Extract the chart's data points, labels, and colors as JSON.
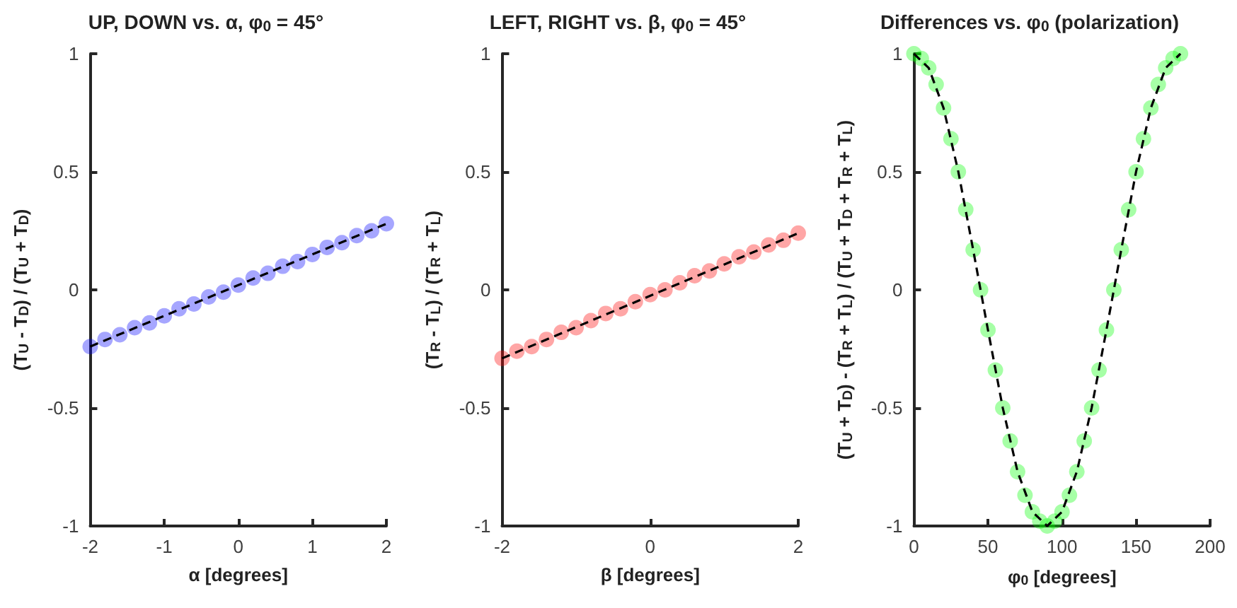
{
  "chart_data": [
    {
      "type": "scatter",
      "title": "UP, DOWN vs. α, φ$_{0}$ = 45°",
      "xlabel": "α [degrees]",
      "ylabel": "(T$_{U}$ - T$_{D}$) / (T$_{U}$ + T$_{D}$)",
      "xlim": [
        -2,
        2
      ],
      "xticks": [
        -2,
        -1,
        0,
        1,
        2
      ],
      "ylim": [
        -1,
        1
      ],
      "yticks": [
        -1,
        -0.5,
        0,
        0.5,
        1
      ],
      "grid": false,
      "series": [
        {
          "color": "#0000ff",
          "marker": "circle",
          "x": [
            -2,
            -1.8,
            -1.6,
            -1.4,
            -1.2,
            -1,
            -0.8,
            -0.6,
            -0.4,
            -0.2,
            0,
            0.2,
            0.4,
            0.6,
            0.8,
            1,
            1.2,
            1.4,
            1.6,
            1.8,
            2
          ],
          "values": [
            -0.24,
            -0.21,
            -0.19,
            -0.16,
            -0.14,
            -0.11,
            -0.08,
            -0.06,
            -0.03,
            -0.01,
            0.02,
            0.05,
            0.07,
            0.1,
            0.12,
            0.15,
            0.18,
            0.2,
            0.23,
            0.25,
            0.28
          ]
        },
        {
          "type": "line",
          "color": "#000000",
          "marker": "none",
          "line_style": "dashed",
          "x": [
            -2,
            2
          ],
          "values": [
            -0.24,
            0.28
          ]
        }
      ]
    },
    {
      "type": "scatter",
      "title": "LEFT, RIGHT vs. β, φ$_{0}$ = 45°",
      "xlabel": "β [degrees]",
      "ylabel": "(T$_{R}$ - T$_{L}$) / (T$_{R}$ + T$_{L}$)",
      "xlim": [
        -2,
        2
      ],
      "xticks": [
        -2,
        0,
        2
      ],
      "ylim": [
        -1,
        1
      ],
      "yticks": [
        -1,
        -0.5,
        0,
        0.5,
        1
      ],
      "grid": false,
      "series": [
        {
          "color": "#ff0000",
          "marker": "circle",
          "x": [
            -2,
            -1.8,
            -1.6,
            -1.4,
            -1.2,
            -1,
            -0.8,
            -0.6,
            -0.4,
            -0.2,
            0,
            0.2,
            0.4,
            0.6,
            0.8,
            1,
            1.2,
            1.4,
            1.6,
            1.8,
            2
          ],
          "values": [
            -0.29,
            -0.26,
            -0.24,
            -0.21,
            -0.18,
            -0.16,
            -0.13,
            -0.1,
            -0.08,
            -0.05,
            -0.02,
            0,
            0.03,
            0.06,
            0.08,
            0.11,
            0.14,
            0.16,
            0.19,
            0.21,
            0.24
          ]
        },
        {
          "type": "line",
          "color": "#000000",
          "marker": "none",
          "line_style": "dashed",
          "x": [
            -2,
            2
          ],
          "values": [
            -0.29,
            0.24
          ]
        }
      ]
    },
    {
      "type": "scatter",
      "title": "Differences vs. φ$_{0}$ (polarization)",
      "xlabel": "φ$_{0}$ [degrees]",
      "ylabel": "(T$_{U}$ + T$_{D}$) - (T$_{R}$ + T$_{L}$) / (T$_{U}$ + T$_{D}$ + T$_{R}$ + T$_{L}$)",
      "xlim": [
        0,
        200
      ],
      "xticks": [
        0,
        50,
        100,
        150,
        200
      ],
      "ylim": [
        -1,
        1
      ],
      "yticks": [
        -1,
        -0.5,
        0,
        0.5,
        1
      ],
      "grid": false,
      "series": [
        {
          "color": "#00ff00",
          "marker": "circle",
          "x": [
            0,
            5,
            10,
            15,
            20,
            25,
            30,
            35,
            40,
            45,
            50,
            55,
            60,
            65,
            70,
            75,
            80,
            85,
            90,
            95,
            100,
            105,
            110,
            115,
            120,
            125,
            130,
            135,
            140,
            145,
            150,
            155,
            160,
            165,
            170,
            175,
            180
          ],
          "values": [
            1,
            0.98,
            0.94,
            0.87,
            0.77,
            0.64,
            0.5,
            0.34,
            0.17,
            0,
            -0.17,
            -0.34,
            -0.5,
            -0.64,
            -0.77,
            -0.87,
            -0.94,
            -0.98,
            -1,
            -0.98,
            -0.94,
            -0.87,
            -0.77,
            -0.64,
            -0.5,
            -0.34,
            -0.17,
            0,
            0.17,
            0.34,
            0.5,
            0.64,
            0.77,
            0.87,
            0.94,
            0.98,
            1
          ]
        },
        {
          "type": "line",
          "color": "#000000",
          "marker": "none",
          "line_style": "dashed",
          "x": [
            0,
            10,
            20,
            30,
            40,
            45,
            50,
            60,
            70,
            80,
            90,
            100,
            110,
            120,
            130,
            135,
            140,
            150,
            160,
            170,
            180
          ],
          "values": [
            1,
            0.94,
            0.77,
            0.5,
            0.17,
            0,
            -0.17,
            -0.5,
            -0.77,
            -0.94,
            -1,
            -0.94,
            -0.77,
            -0.5,
            -0.17,
            0,
            0.17,
            0.5,
            0.77,
            0.94,
            1
          ]
        }
      ]
    }
  ]
}
